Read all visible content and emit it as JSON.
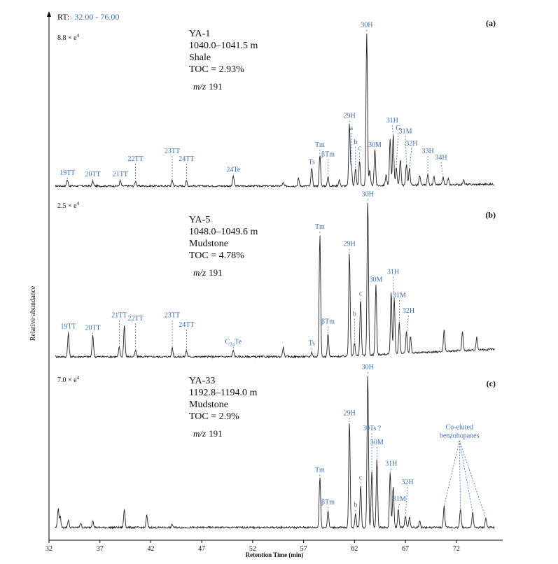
{
  "header": {
    "rt_label": "RT:",
    "rt_range": "32.00 - 76.00"
  },
  "colors": {
    "annotation": "#3d6fb0",
    "trace": "#222222",
    "axis": "#000000"
  },
  "chart_data": {
    "type": "line",
    "xlabel": "Retention Time (min)",
    "ylabel": "Relative abundance",
    "xlim": [
      32,
      76
    ],
    "x_ticks": [
      32,
      37,
      42,
      47,
      52,
      57,
      62,
      67,
      72
    ],
    "panels": [
      {
        "tag": "(a)",
        "scale_label": "8.8 × e",
        "scale_exp": "4",
        "sample": "YA-1",
        "depth": "1040.0–1041.5 m",
        "lithology": "Shale",
        "toc": "TOC = 2.93%",
        "mz_prefix": "m/z",
        "mz_value": "191",
        "peaks": [
          {
            "x": 33.8,
            "h": 0.04
          },
          {
            "x": 36.3,
            "h": 0.03
          },
          {
            "x": 39.0,
            "h": 0.035
          },
          {
            "x": 40.5,
            "h": 0.03
          },
          {
            "x": 44.1,
            "h": 0.04
          },
          {
            "x": 45.5,
            "h": 0.035
          },
          {
            "x": 50.1,
            "h": 0.065
          },
          {
            "x": 55.0,
            "h": 0.02
          },
          {
            "x": 56.5,
            "h": 0.05
          },
          {
            "x": 57.8,
            "h": 0.12
          },
          {
            "x": 58.6,
            "h": 0.2
          },
          {
            "x": 59.4,
            "h": 0.06
          },
          {
            "x": 60.5,
            "h": 0.04
          },
          {
            "x": 61.5,
            "h": 0.4
          },
          {
            "x": 61.7,
            "h": 0.12
          },
          {
            "x": 62.1,
            "h": 0.11
          },
          {
            "x": 62.5,
            "h": 0.16
          },
          {
            "x": 63.2,
            "h": 1.0
          },
          {
            "x": 63.5,
            "h": 0.1
          },
          {
            "x": 64.0,
            "h": 0.24
          },
          {
            "x": 65.1,
            "h": 0.07
          },
          {
            "x": 65.5,
            "h": 0.3
          },
          {
            "x": 65.8,
            "h": 0.33
          },
          {
            "x": 66.1,
            "h": 0.12
          },
          {
            "x": 66.5,
            "h": 0.17
          },
          {
            "x": 67.1,
            "h": 0.14
          },
          {
            "x": 67.4,
            "h": 0.11
          },
          {
            "x": 68.4,
            "h": 0.06
          },
          {
            "x": 69.2,
            "h": 0.07
          },
          {
            "x": 69.8,
            "h": 0.05
          },
          {
            "x": 70.7,
            "h": 0.05
          },
          {
            "x": 71.2,
            "h": 0.04
          },
          {
            "x": 72.7,
            "h": 0.03
          }
        ],
        "labels": [
          {
            "text": "19TT",
            "x": 33.8,
            "h": 0.06
          },
          {
            "text": "20TT",
            "x": 36.3,
            "h": 0.05
          },
          {
            "text": "21TT",
            "x": 39.0,
            "h": 0.05
          },
          {
            "text": "22TT",
            "x": 40.5,
            "h": 0.15
          },
          {
            "text": "23TT",
            "x": 44.1,
            "h": 0.2
          },
          {
            "text": "24TT",
            "x": 45.5,
            "h": 0.15
          },
          {
            "text": "24Te",
            "x": 50.1,
            "h": 0.08
          },
          {
            "text": "Ts",
            "x": 57.8,
            "h": 0.13
          },
          {
            "text": "Tm",
            "x": 58.6,
            "h": 0.24
          },
          {
            "text": "βTm",
            "x": 59.4,
            "h": 0.18
          },
          {
            "text": "29H",
            "x": 61.5,
            "h": 0.43
          },
          {
            "text": "a",
            "x": 61.7,
            "h": 0.35
          },
          {
            "text": "b",
            "x": 62.1,
            "h": 0.26
          },
          {
            "text": "c",
            "x": 62.5,
            "h": 0.22
          },
          {
            "text": "30H",
            "x": 63.2,
            "h": 1.02
          },
          {
            "text": "30M",
            "x": 64.0,
            "h": 0.24
          },
          {
            "text": "31H",
            "x": 65.7,
            "h": 0.4
          },
          {
            "text": "G",
            "x": 66.3,
            "h": 0.35
          },
          {
            "text": "31M",
            "x": 67.0,
            "h": 0.33
          },
          {
            "text": "32H",
            "x": 67.6,
            "h": 0.25
          },
          {
            "text": "33H",
            "x": 69.2,
            "h": 0.2
          },
          {
            "text": "34H",
            "x": 70.5,
            "h": 0.16
          }
        ]
      },
      {
        "tag": "(b)",
        "scale_label": "2.5 × e",
        "scale_exp": "4",
        "sample": "YA-5",
        "depth": "1048.0–1049.6 m",
        "lithology": "Mudstone",
        "toc": "TOC = 4.78%",
        "mz_prefix": "m/z",
        "mz_value": "191",
        "peaks": [
          {
            "x": 32.5,
            "h": 0.03
          },
          {
            "x": 33.9,
            "h": 0.15
          },
          {
            "x": 36.3,
            "h": 0.14
          },
          {
            "x": 38.9,
            "h": 0.06
          },
          {
            "x": 39.4,
            "h": 0.2
          },
          {
            "x": 40.5,
            "h": 0.04
          },
          {
            "x": 44.1,
            "h": 0.06
          },
          {
            "x": 45.5,
            "h": 0.04
          },
          {
            "x": 50.1,
            "h": 0.04
          },
          {
            "x": 55.0,
            "h": 0.06
          },
          {
            "x": 57.8,
            "h": 0.03
          },
          {
            "x": 58.6,
            "h": 0.79
          },
          {
            "x": 59.4,
            "h": 0.15
          },
          {
            "x": 61.5,
            "h": 0.67
          },
          {
            "x": 62.0,
            "h": 0.08
          },
          {
            "x": 62.6,
            "h": 0.36
          },
          {
            "x": 63.3,
            "h": 1.0
          },
          {
            "x": 64.1,
            "h": 0.45
          },
          {
            "x": 65.6,
            "h": 0.4
          },
          {
            "x": 65.9,
            "h": 0.36
          },
          {
            "x": 66.4,
            "h": 0.2
          },
          {
            "x": 67.1,
            "h": 0.14
          },
          {
            "x": 67.5,
            "h": 0.11
          },
          {
            "x": 70.8,
            "h": 0.14
          },
          {
            "x": 72.6,
            "h": 0.12
          },
          {
            "x": 74.0,
            "h": 0.08
          }
        ],
        "labels": [
          {
            "text": "19TT",
            "x": 33.9,
            "h": 0.17
          },
          {
            "text": "20TT",
            "x": 36.3,
            "h": 0.16
          },
          {
            "text": "21TT",
            "x": 38.9,
            "h": 0.24
          },
          {
            "text": "22TT",
            "x": 40.5,
            "h": 0.22
          },
          {
            "text": "23TT",
            "x": 44.1,
            "h": 0.24
          },
          {
            "text": "24TT",
            "x": 45.5,
            "h": 0.18
          },
          {
            "text": "Te",
            "prefix": "C",
            "sub": "24",
            "x": 50.1,
            "h": 0.07
          },
          {
            "text": "Ts",
            "x": 57.8,
            "h": 0.06
          },
          {
            "text": "Tm",
            "x": 58.6,
            "h": 0.81
          },
          {
            "text": "βTm",
            "x": 59.4,
            "h": 0.2
          },
          {
            "text": "29H",
            "x": 61.5,
            "h": 0.7
          },
          {
            "text": "b",
            "x": 62.0,
            "h": 0.25
          },
          {
            "text": "c",
            "x": 62.6,
            "h": 0.38
          },
          {
            "text": "30H",
            "x": 63.3,
            "h": 1.02
          },
          {
            "text": "30M",
            "x": 64.1,
            "h": 0.47
          },
          {
            "text": "31H",
            "x": 65.8,
            "h": 0.52
          },
          {
            "text": "31M",
            "x": 66.4,
            "h": 0.37
          },
          {
            "text": "32H",
            "x": 67.3,
            "h": 0.27
          }
        ]
      },
      {
        "tag": "(c)",
        "scale_label": "7.0 × e",
        "scale_exp": "4",
        "sample": "YA-33",
        "depth": "1192.8–1194.0 m",
        "lithology": "Mudstone",
        "toc": "TOC = 2.9%",
        "mz_prefix": "m/z",
        "mz_value": "191",
        "peaks": [
          {
            "x": 32.9,
            "h": 0.12
          },
          {
            "x": 33.1,
            "h": 0.07
          },
          {
            "x": 33.9,
            "h": 0.05
          },
          {
            "x": 35.1,
            "h": 0.03
          },
          {
            "x": 36.3,
            "h": 0.05
          },
          {
            "x": 39.4,
            "h": 0.12
          },
          {
            "x": 41.6,
            "h": 0.08
          },
          {
            "x": 44.1,
            "h": 0.02
          },
          {
            "x": 58.6,
            "h": 0.33
          },
          {
            "x": 59.4,
            "h": 0.11
          },
          {
            "x": 61.5,
            "h": 0.69
          },
          {
            "x": 62.1,
            "h": 0.09
          },
          {
            "x": 62.6,
            "h": 0.28
          },
          {
            "x": 63.3,
            "h": 1.0
          },
          {
            "x": 63.7,
            "h": 0.37
          },
          {
            "x": 64.2,
            "h": 0.45
          },
          {
            "x": 65.5,
            "h": 0.36
          },
          {
            "x": 65.8,
            "h": 0.27
          },
          {
            "x": 66.3,
            "h": 0.12
          },
          {
            "x": 67.0,
            "h": 0.08
          },
          {
            "x": 67.4,
            "h": 0.07
          },
          {
            "x": 68.4,
            "h": 0.04
          },
          {
            "x": 70.8,
            "h": 0.14
          },
          {
            "x": 72.4,
            "h": 0.12
          },
          {
            "x": 73.6,
            "h": 0.1
          },
          {
            "x": 74.9,
            "h": 0.06
          }
        ],
        "labels": [
          {
            "text": "Tm",
            "x": 58.6,
            "h": 0.35
          },
          {
            "text": "βTm",
            "x": 59.4,
            "h": 0.14
          },
          {
            "text": "29H",
            "x": 61.5,
            "h": 0.72
          },
          {
            "text": "b",
            "x": 62.1,
            "h": 0.12
          },
          {
            "text": "c",
            "x": 62.6,
            "h": 0.3
          },
          {
            "text": "30H",
            "x": 63.3,
            "h": 1.02
          },
          {
            "text": "30Ts ?",
            "x": 63.7,
            "h": 0.62
          },
          {
            "text": "30M",
            "x": 64.2,
            "h": 0.53
          },
          {
            "text": "31H",
            "x": 65.6,
            "h": 0.39
          },
          {
            "text": "31M",
            "x": 66.4,
            "h": 0.16
          },
          {
            "text": "32H",
            "x": 67.2,
            "h": 0.27
          }
        ],
        "annotation": {
          "lines": [
            "Co-eluted",
            "benzohopanes"
          ],
          "targets": [
            70.8,
            72.4,
            73.6,
            74.9
          ]
        }
      }
    ]
  }
}
